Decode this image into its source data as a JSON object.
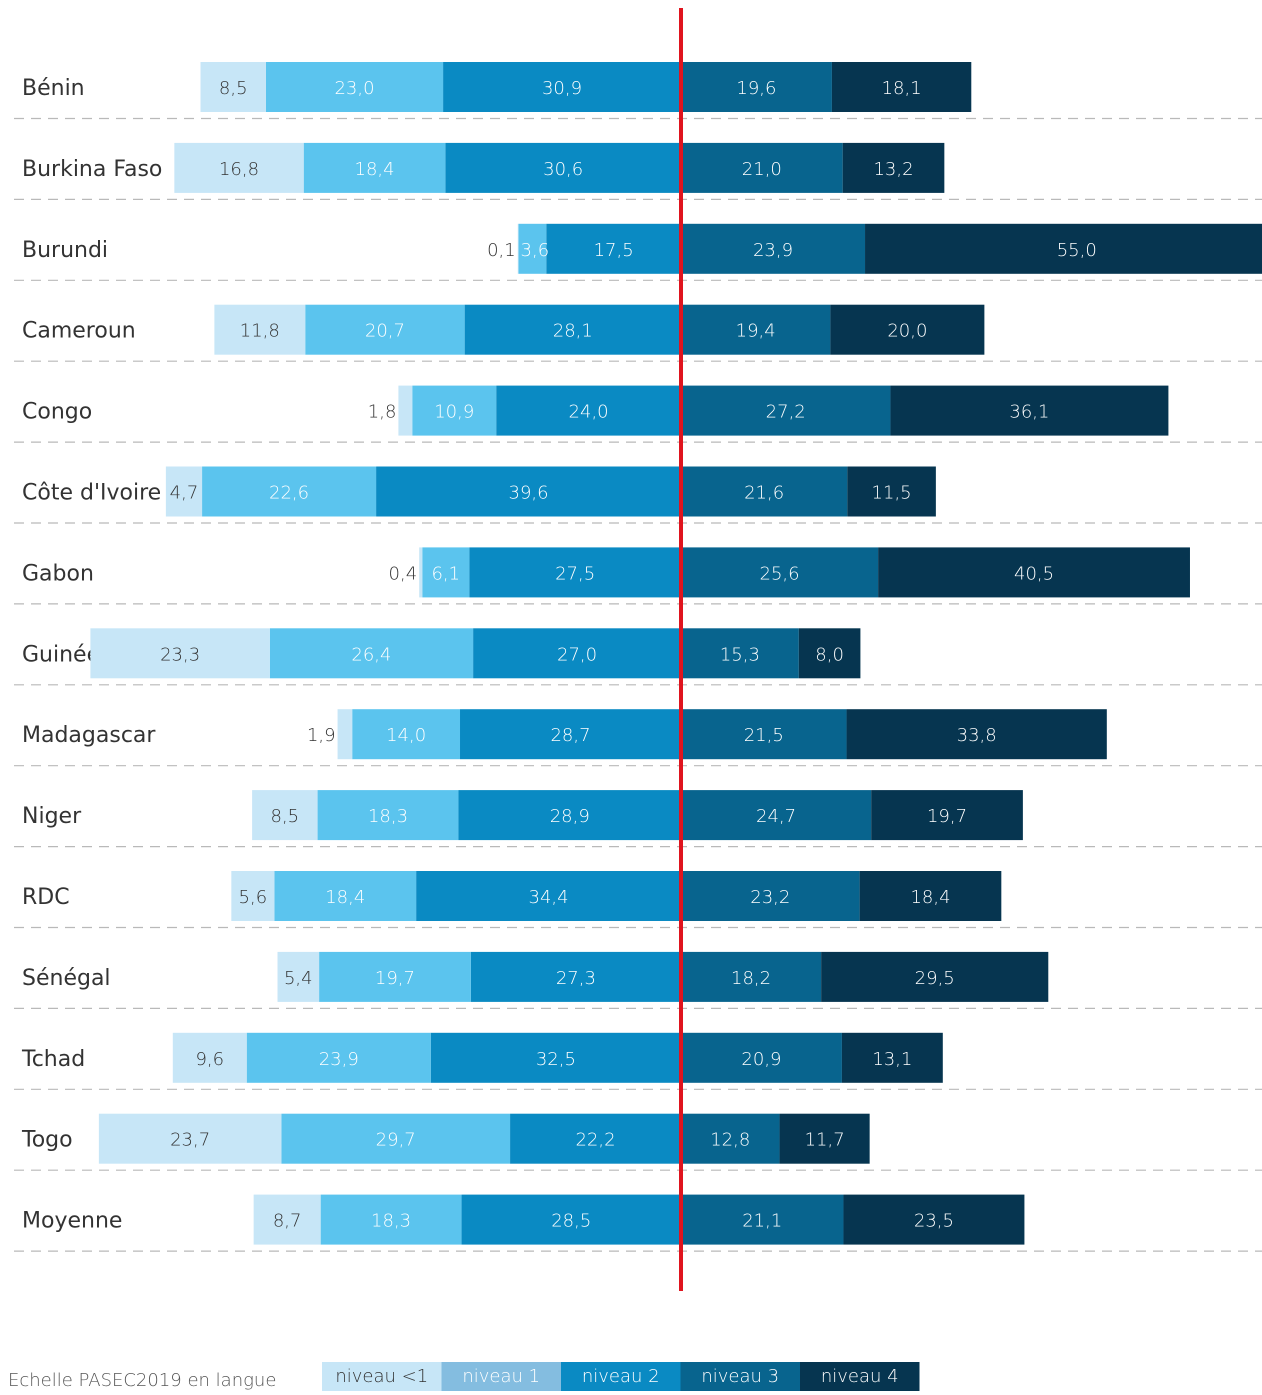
{
  "chart_data": {
    "type": "bar",
    "orientation": "horizontal",
    "stacking": "diverging",
    "categories": [
      "Bénin",
      "Burkina Faso",
      "Burundi",
      "Cameroun",
      "Congo",
      "Côte d'Ivoire",
      "Gabon",
      "Guinée",
      "Madagascar",
      "Niger",
      "RDC",
      "Sénégal",
      "Tchad",
      "Togo",
      "Moyenne"
    ],
    "series": [
      {
        "name": "niveau <1",
        "color": "#c7e6f7",
        "label_color": "#333333",
        "values": [
          8.5,
          16.8,
          0.1,
          11.8,
          1.8,
          4.7,
          0.4,
          23.3,
          1.9,
          8.5,
          5.6,
          5.4,
          9.6,
          23.7,
          8.7
        ],
        "labels": [
          "8,5",
          "16,8",
          "0,1",
          "11,8",
          "1,8",
          "4,7",
          "0,4",
          "23,3",
          "1,9",
          "8,5",
          "5,6",
          "5,4",
          "9,6",
          "23,7",
          "8,7"
        ]
      },
      {
        "name": "niveau 1",
        "color": "#5bc4ee",
        "label_color": "#ffffff",
        "values": [
          23.0,
          18.4,
          3.6,
          20.7,
          10.9,
          22.6,
          6.1,
          26.4,
          14.0,
          18.3,
          18.4,
          19.7,
          23.9,
          29.7,
          18.3
        ],
        "labels": [
          "23,0",
          "18,4",
          "3,6",
          "20,7",
          "10,9",
          "22,6",
          "6,1",
          "26,4",
          "14,0",
          "18,3",
          "18,4",
          "19,7",
          "23,9",
          "29,7",
          "18,3"
        ]
      },
      {
        "name": "niveau 2",
        "color": "#0a8ac3",
        "label_color": "#ffffff",
        "values": [
          30.9,
          30.6,
          17.5,
          28.1,
          24.0,
          39.6,
          27.5,
          27.0,
          28.7,
          28.9,
          34.4,
          27.3,
          32.5,
          22.2,
          28.5
        ],
        "labels": [
          "30,9",
          "30,6",
          "17,5",
          "28,1",
          "24,0",
          "39,6",
          "27,5",
          "27,0",
          "28,7",
          "28,9",
          "34,4",
          "27,3",
          "32,5",
          "22,2",
          "28,5"
        ]
      },
      {
        "name": "niveau 3",
        "color": "#08648e",
        "label_color": "#ffffff",
        "values": [
          19.6,
          21.0,
          23.9,
          19.4,
          27.2,
          21.6,
          25.6,
          15.3,
          21.5,
          24.7,
          23.2,
          18.2,
          20.9,
          12.8,
          21.1
        ],
        "labels": [
          "19,6",
          "21,0",
          "23,9",
          "19,4",
          "27,2",
          "21,6",
          "25,6",
          "15,3",
          "21,5",
          "24,7",
          "23,2",
          "18,2",
          "20,9",
          "12,8",
          "21,1"
        ]
      },
      {
        "name": "niveau 4",
        "color": "#063550",
        "label_color": "#ffffff",
        "values": [
          18.1,
          13.2,
          55.0,
          20.0,
          36.1,
          11.5,
          40.5,
          8.0,
          33.8,
          19.7,
          18.4,
          29.5,
          13.1,
          11.7,
          23.5
        ],
        "labels": [
          "18,1",
          "13,2",
          "55,0",
          "20,0",
          "36,1",
          "11,5",
          "40,5",
          "8,0",
          "33,8",
          "19,7",
          "18,4",
          "29,5",
          "13,1",
          "11,7",
          "23,5"
        ]
      }
    ],
    "center_line_color": "#e0141e",
    "grid": "dashed separators between rows",
    "legend": {
      "placement": "bottom",
      "title": "Echelle PASEC2019 en langue",
      "items": [
        "niveau <1",
        "niveau 1",
        "niveau 2",
        "niveau 3",
        "niveau 4"
      ],
      "item_colors": [
        "#c7e6f7",
        "#84bde0",
        "#0a8ac3",
        "#08648e",
        "#063550"
      ],
      "item_text_colors": [
        "#333333",
        "#ffffff",
        "#ffffff",
        "#ffffff",
        "#ffffff"
      ]
    }
  }
}
